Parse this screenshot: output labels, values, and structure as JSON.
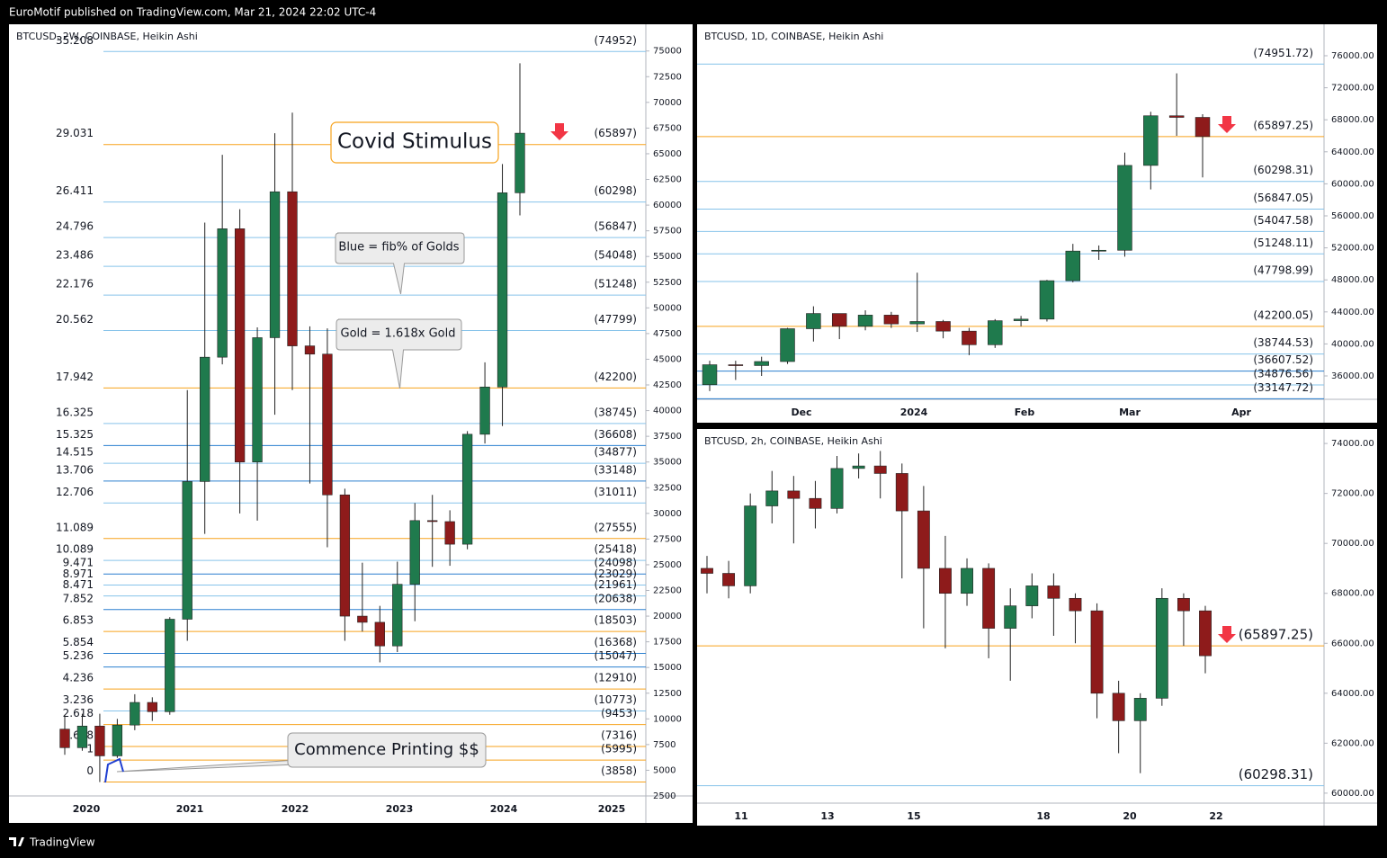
{
  "header": "EuroMotif published on TradingView.com, Mar 21, 2024 22:02 UTC-4",
  "footer": "TradingView",
  "chart_data": [
    {
      "type": "candlestick",
      "title": "BTCUSD, 2W, COINBASE, Heikin Ashi",
      "up_color": "#1f7a4d",
      "down_color": "#8e1b1b",
      "open": [
        9000,
        7200,
        9300,
        6400,
        9400,
        11600,
        10700,
        19700,
        33100,
        45200,
        57700,
        35000,
        47100,
        61300,
        46300,
        45500,
        31800,
        20000,
        19400,
        17100,
        23100,
        29300,
        29200,
        27000,
        37700,
        42300,
        61200
      ],
      "high": [
        10400,
        10500,
        10500,
        10000,
        12400,
        12100,
        19900,
        42000,
        58300,
        64900,
        59600,
        48100,
        67000,
        69000,
        48200,
        48000,
        32400,
        25200,
        21000,
        25300,
        31000,
        31800,
        30300,
        38000,
        44700,
        64000,
        73800
      ],
      "low": [
        6500,
        6900,
        3850,
        6200,
        8900,
        9800,
        10400,
        17600,
        28000,
        44500,
        30000,
        29300,
        39600,
        42000,
        32900,
        26700,
        17600,
        18500,
        15500,
        16500,
        19500,
        24800,
        24900,
        26500,
        36800,
        38500,
        59000
      ],
      "close": [
        7200,
        9300,
        6400,
        9400,
        11600,
        10700,
        19700,
        33100,
        45200,
        57700,
        35000,
        47100,
        61300,
        46300,
        45500,
        31800,
        20000,
        19400,
        17100,
        23100,
        29300,
        29200,
        27000,
        37700,
        42300,
        61200,
        67000
      ],
      "ylim": [
        2500,
        77600
      ],
      "yticks": [
        2500,
        5000,
        7500,
        10000,
        12500,
        15000,
        17500,
        20000,
        22500,
        25000,
        27500,
        30000,
        32500,
        35000,
        37500,
        40000,
        42500,
        45000,
        47500,
        50000,
        52500,
        55000,
        57500,
        60000,
        62500,
        65000,
        67500,
        70000,
        72500,
        75000
      ],
      "xlabels": [
        "2020",
        "2021",
        "2022",
        "2023",
        "2024",
        "2025"
      ],
      "levels": [
        {
          "ratio": 35.208,
          "label": "(74952)",
          "value": 74952,
          "color": "#86c3ea"
        },
        {
          "ratio": 29.031,
          "label": "(65897)",
          "value": 65897,
          "color": "#f7a21b"
        },
        {
          "ratio": 26.411,
          "label": "(60298)",
          "value": 60298,
          "color": "#86c3ea"
        },
        {
          "ratio": 24.796,
          "label": "(56847)",
          "value": 56847,
          "color": "#86c3ea"
        },
        {
          "ratio": 23.486,
          "label": "(54048)",
          "value": 54048,
          "color": "#86c3ea"
        },
        {
          "ratio": 22.176,
          "label": "(51248)",
          "value": 51248,
          "color": "#86c3ea"
        },
        {
          "ratio": 20.562,
          "label": "(47799)",
          "value": 47799,
          "color": "#86c3ea"
        },
        {
          "ratio": 17.942,
          "label": "(42200)",
          "value": 42200,
          "color": "#f7a21b"
        },
        {
          "ratio": 16.325,
          "label": "(38745)",
          "value": 38745,
          "color": "#86c3ea"
        },
        {
          "ratio": 15.325,
          "label": "(36608)",
          "value": 36608,
          "color": "#2a7fcf"
        },
        {
          "ratio": 14.515,
          "label": "(34877)",
          "value": 34877,
          "color": "#86c3ea"
        },
        {
          "ratio": 13.706,
          "label": "(33148)",
          "value": 33148,
          "color": "#2a7fcf"
        },
        {
          "ratio": 12.706,
          "label": "(31011)",
          "value": 31011,
          "color": "#86c3ea"
        },
        {
          "ratio": 11.089,
          "label": "(27555)",
          "value": 27555,
          "color": "#f7a21b"
        },
        {
          "ratio": 10.089,
          "label": "(25418)",
          "value": 25418,
          "color": "#86c3ea"
        },
        {
          "ratio": 9.471,
          "label": "(24098)",
          "value": 24098,
          "color": "#2a7fcf"
        },
        {
          "ratio": 8.971,
          "label": "(23029)",
          "value": 23029,
          "color": "#86c3ea"
        },
        {
          "ratio": 8.471,
          "label": "(21961)",
          "value": 21961,
          "color": "#86c3ea"
        },
        {
          "ratio": 7.852,
          "label": "(20638)",
          "value": 20638,
          "color": "#2a7fcf"
        },
        {
          "ratio": 6.853,
          "label": "(18503)",
          "value": 18503,
          "color": "#f7a21b"
        },
        {
          "ratio": 5.854,
          "label": "(16368)",
          "value": 16368,
          "color": "#2a7fcf"
        },
        {
          "ratio": 5.236,
          "label": "(15047)",
          "value": 15047,
          "color": "#2a7fcf"
        },
        {
          "ratio": 4.236,
          "label": "(12910)",
          "value": 12910,
          "color": "#f7a21b"
        },
        {
          "ratio": 3.236,
          "label": "(10773)",
          "value": 10773,
          "color": "#86c3ea"
        },
        {
          "ratio": 2.618,
          "label": "(9453)",
          "value": 9453,
          "color": "#f7a21b"
        },
        {
          "ratio": 1.618,
          "label": "(7316)",
          "value": 7316,
          "color": "#f7a21b"
        },
        {
          "ratio": 1,
          "label": "(5995)",
          "value": 5995,
          "color": "#f7a21b"
        },
        {
          "ratio": 0,
          "label": "(3858)",
          "value": 3858,
          "color": "#f7a21b"
        }
      ],
      "annotations": [
        "Covid Stimulus",
        "Blue = fib% of Golds",
        "Gold = 1.618x Gold",
        "Commence Printing $$"
      ]
    },
    {
      "type": "candlestick",
      "title": "BTCUSD, 1D, COINBASE, Heikin Ashi",
      "up_color": "#1f7a4d",
      "down_color": "#8e1b1b",
      "open": [
        34900,
        37400,
        37300,
        37800,
        41900,
        43800,
        42200,
        43600,
        42500,
        42800,
        41600,
        39900,
        42900,
        43100,
        47900,
        51600,
        51700,
        62300,
        68500,
        68300
      ],
      "high": [
        37900,
        37900,
        38400,
        42000,
        44700,
        43500,
        44200,
        44000,
        48900,
        43000,
        42000,
        43100,
        43500,
        48000,
        52500,
        52300,
        63900,
        69000,
        73800,
        68700
      ],
      "low": [
        34100,
        35500,
        36000,
        37500,
        40300,
        40600,
        41700,
        42000,
        41500,
        40700,
        38600,
        39500,
        42200,
        42800,
        47700,
        50500,
        50900,
        59300,
        66000,
        60800
      ],
      "close": [
        37400,
        37300,
        37800,
        41900,
        43800,
        42200,
        43600,
        42500,
        42800,
        41600,
        39900,
        42900,
        43100,
        47900,
        51600,
        51700,
        62300,
        68500,
        68300,
        65900
      ],
      "ylim": [
        33080,
        79930
      ],
      "yticks": [
        {
          "value": 36000,
          "label": "36000.00"
        },
        {
          "value": 40000,
          "label": "40000.00"
        },
        {
          "value": 44000,
          "label": "44000.00"
        },
        {
          "value": 48000,
          "label": "48000.00"
        },
        {
          "value": 52000,
          "label": "52000.00"
        },
        {
          "value": 56000,
          "label": "56000.00"
        },
        {
          "value": 60000,
          "label": "60000.00"
        },
        {
          "value": 64000,
          "label": "64000.00"
        },
        {
          "value": 68000,
          "label": "68000.00"
        },
        {
          "value": 72000,
          "label": "72000.00"
        },
        {
          "value": 76000,
          "label": "76000.00"
        }
      ],
      "xlabels": [
        "Dec",
        "2024",
        "Feb",
        "Mar",
        "Apr"
      ],
      "levels": [
        {
          "label": "(74951.72)",
          "value": 74951.72,
          "color": "#86c3ea"
        },
        {
          "label": "(65897.25)",
          "value": 65897.25,
          "color": "#f7a21b"
        },
        {
          "label": "(60298.31)",
          "value": 60298.31,
          "color": "#86c3ea"
        },
        {
          "label": "(56847.05)",
          "value": 56847.05,
          "color": "#86c3ea"
        },
        {
          "label": "(54047.58)",
          "value": 54047.58,
          "color": "#86c3ea"
        },
        {
          "label": "(51248.11)",
          "value": 51248.11,
          "color": "#86c3ea"
        },
        {
          "label": "(47798.99)",
          "value": 47798.99,
          "color": "#86c3ea"
        },
        {
          "label": "(42200.05)",
          "value": 42200.05,
          "color": "#f7a21b"
        },
        {
          "label": "(38744.53)",
          "value": 38744.53,
          "color": "#86c3ea"
        },
        {
          "label": "(36607.52)",
          "value": 36607.52,
          "color": "#2a7fcf"
        },
        {
          "label": "(34876.56)",
          "value": 34876.56,
          "color": "#86c3ea"
        },
        {
          "label": "(33147.72)",
          "value": 33147.72,
          "color": "#2a7fcf"
        }
      ]
    },
    {
      "type": "candlestick",
      "title": "BTCUSD, 2h, COINBASE, Heikin Ashi",
      "up_color": "#1f7a4d",
      "down_color": "#8e1b1b",
      "open": [
        69000,
        68800,
        68300,
        71500,
        72100,
        71800,
        71400,
        73000,
        73100,
        72800,
        71300,
        69000,
        68000,
        69000,
        66600,
        67500,
        68300,
        67800,
        67300,
        64000,
        62900,
        63800,
        67800,
        67300
      ],
      "high": [
        69500,
        69300,
        72000,
        72900,
        72700,
        72500,
        73500,
        73600,
        73700,
        73200,
        72300,
        70300,
        69400,
        69200,
        68200,
        68800,
        68800,
        68000,
        67600,
        64500,
        64000,
        68200,
        68000,
        67500
      ],
      "low": [
        68000,
        67800,
        68000,
        70800,
        70000,
        70600,
        71200,
        72600,
        71800,
        68600,
        66600,
        65800,
        67500,
        65400,
        64500,
        67000,
        66300,
        66000,
        63000,
        61600,
        60800,
        63500,
        65900,
        64800
      ],
      "close": [
        68800,
        68300,
        71500,
        72100,
        71800,
        71400,
        73000,
        73100,
        72800,
        71300,
        69000,
        68000,
        69000,
        66600,
        67500,
        68300,
        67800,
        67300,
        64000,
        62900,
        63800,
        67800,
        67300,
        65500
      ],
      "ylim": [
        59600,
        74580
      ],
      "yticks": [
        {
          "value": 60000,
          "label": "60000.00"
        },
        {
          "value": 62000,
          "label": "62000.00"
        },
        {
          "value": 64000,
          "label": "64000.00"
        },
        {
          "value": 66000,
          "label": "66000.00"
        },
        {
          "value": 68000,
          "label": "68000.00"
        },
        {
          "value": 70000,
          "label": "70000.00"
        },
        {
          "value": 72000,
          "label": "72000.00"
        },
        {
          "value": 74000,
          "label": "74000.00"
        }
      ],
      "xlabels": [
        "11",
        "13",
        "15",
        "18",
        "20",
        "22"
      ],
      "levels": [
        {
          "label": "(65897.25)",
          "value": 65897.25,
          "color": "#f7a21b"
        },
        {
          "label": "(60298.31)",
          "value": 60298.31,
          "color": "#86c3ea"
        }
      ]
    }
  ]
}
